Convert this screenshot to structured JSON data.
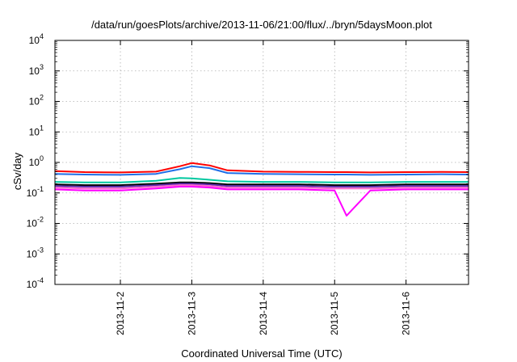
{
  "chart_data": {
    "type": "line",
    "title": "/data/run/goesPlots/archive/2013-11-06/21:00/flux/../bryn/5daysMoon.plot",
    "xlabel": "Coordinated Universal Time (UTC)",
    "ylabel": "cSv/day",
    "yscale": "log",
    "ylim": [
      0.0001,
      10000
    ],
    "xlim": [
      "2013-11-01T02:00",
      "2013-11-06T21:00"
    ],
    "grid": true,
    "legend": "none",
    "x_ticks": [
      "2013-11-2",
      "2013-11-3",
      "2013-11-4",
      "2013-11-5",
      "2013-11-6"
    ],
    "y_ticks": [
      {
        "base": "10",
        "exp": "-4"
      },
      {
        "base": "10",
        "exp": "-3"
      },
      {
        "base": "10",
        "exp": "-2"
      },
      {
        "base": "10",
        "exp": "-1"
      },
      {
        "base": "10",
        "exp": "0"
      },
      {
        "base": "10",
        "exp": "1"
      },
      {
        "base": "10",
        "exp": "2"
      },
      {
        "base": "10",
        "exp": "3"
      },
      {
        "base": "10",
        "exp": "4"
      }
    ],
    "x": [
      "2013-11-01T02:00",
      "2013-11-01T12:00",
      "2013-11-02T00:00",
      "2013-11-02T12:00",
      "2013-11-02T20:00",
      "2013-11-03T00:00",
      "2013-11-03T06:00",
      "2013-11-03T12:00",
      "2013-11-04T00:00",
      "2013-11-04T12:00",
      "2013-11-05T00:00",
      "2013-11-05T04:00",
      "2013-11-05T12:00",
      "2013-11-06T00:00",
      "2013-11-06T12:00",
      "2013-11-06T21:00"
    ],
    "series": [
      {
        "color": "#ff0000",
        "values": [
          0.52,
          0.48,
          0.47,
          0.5,
          0.75,
          0.95,
          0.8,
          0.55,
          0.5,
          0.49,
          0.48,
          0.48,
          0.47,
          0.48,
          0.49,
          0.48
        ]
      },
      {
        "color": "#1f6fe8",
        "values": [
          0.42,
          0.4,
          0.39,
          0.42,
          0.6,
          0.75,
          0.65,
          0.45,
          0.42,
          0.41,
          0.4,
          0.4,
          0.39,
          0.4,
          0.41,
          0.4
        ]
      },
      {
        "color": "#00c8a0",
        "values": [
          0.23,
          0.22,
          0.22,
          0.25,
          0.31,
          0.3,
          0.27,
          0.24,
          0.23,
          0.23,
          0.22,
          0.22,
          0.22,
          0.23,
          0.23,
          0.23
        ]
      },
      {
        "color": "#000000",
        "values": [
          0.19,
          0.18,
          0.18,
          0.2,
          0.22,
          0.22,
          0.21,
          0.19,
          0.19,
          0.19,
          0.18,
          0.18,
          0.18,
          0.19,
          0.19,
          0.19
        ]
      },
      {
        "color": "#5a2aa8",
        "values": [
          0.17,
          0.16,
          0.16,
          0.18,
          0.2,
          0.2,
          0.19,
          0.17,
          0.17,
          0.17,
          0.16,
          0.16,
          0.16,
          0.17,
          0.17,
          0.17
        ]
      },
      {
        "color": "#ff66cc",
        "values": [
          0.15,
          0.14,
          0.14,
          0.16,
          0.18,
          0.18,
          0.17,
          0.15,
          0.15,
          0.15,
          0.14,
          0.14,
          0.14,
          0.15,
          0.15,
          0.15
        ]
      },
      {
        "color": "#ff00ff",
        "values": [
          0.13,
          0.12,
          0.12,
          0.14,
          0.16,
          0.16,
          0.15,
          0.13,
          0.13,
          0.13,
          0.12,
          0.018,
          0.12,
          0.13,
          0.13,
          0.13
        ]
      }
    ]
  }
}
